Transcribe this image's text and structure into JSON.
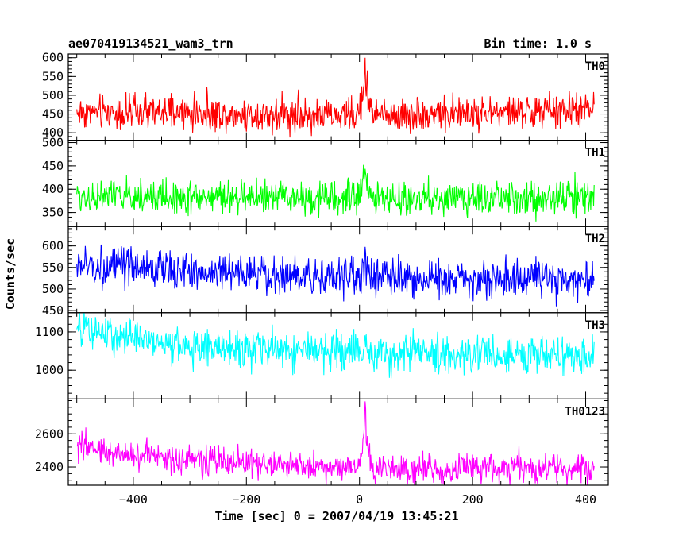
{
  "chart_data": {
    "type": "line",
    "title": "ae070419134521_wam3_trn",
    "bin_label": "Bin time: 1.0 s",
    "xlabel": "Time [sec] 0 = 2007/04/19 13:45:21",
    "ylabel": "Counts/sec",
    "xlim": [
      -515,
      440
    ],
    "x_ticks": [
      -400,
      -200,
      0,
      200,
      400
    ],
    "x_tick_labels": [
      "−400",
      "−200",
      "0",
      "200",
      "400"
    ],
    "x_range": [
      -500,
      415
    ],
    "burst_time": 10,
    "panels": [
      {
        "name": "TH0",
        "color": "#ff0000",
        "ylim": [
          380,
          610
        ],
        "y_ticks": [
          400,
          450,
          500,
          550,
          600
        ],
        "y_tick_labels": [
          "400",
          "450",
          "500",
          "550",
          "600"
        ],
        "mean": [
          [
            -500,
            455
          ],
          [
            0,
            445
          ],
          [
            400,
            460
          ],
          [
            415,
            462
          ]
        ],
        "noise": 28,
        "burst_peak": 150
      },
      {
        "name": "TH1",
        "color": "#00ff00",
        "ylim": [
          320,
          505
        ],
        "y_ticks": [
          350,
          400,
          450,
          500
        ],
        "y_tick_labels": [
          "350",
          "400",
          "450",
          "500"
        ],
        "mean": [
          [
            -500,
            385
          ],
          [
            0,
            380
          ],
          [
            415,
            380
          ]
        ],
        "noise": 22,
        "burst_peak": 80
      },
      {
        "name": "TH2",
        "color": "#0000ff",
        "ylim": [
          445,
          645
        ],
        "y_ticks": [
          450,
          500,
          550,
          600
        ],
        "y_tick_labels": [
          "450",
          "500",
          "550",
          "600"
        ],
        "mean": [
          [
            -500,
            555
          ],
          [
            -200,
            535
          ],
          [
            0,
            530
          ],
          [
            415,
            515
          ]
        ],
        "noise": 28,
        "burst_peak": 25
      },
      {
        "name": "TH3",
        "color": "#00ffff",
        "ylim": [
          925,
          1150
        ],
        "y_ticks": [
          1000,
          1100
        ],
        "y_tick_labels": [
          "1000",
          "1100"
        ],
        "mean": [
          [
            -500,
            1105
          ],
          [
            -300,
            1060
          ],
          [
            0,
            1045
          ],
          [
            415,
            1035
          ]
        ],
        "noise": 30,
        "burst_peak": 20
      },
      {
        "name": "TH0123",
        "color": "#ff00ff",
        "ylim": [
          2290,
          2810
        ],
        "y_ticks": [
          2400,
          2600
        ],
        "y_tick_labels": [
          "2400",
          "2600"
        ],
        "mean": [
          [
            -500,
            2520
          ],
          [
            -350,
            2450
          ],
          [
            0,
            2390
          ],
          [
            415,
            2390
          ]
        ],
        "noise": 55,
        "burst_peak": 330
      }
    ]
  }
}
